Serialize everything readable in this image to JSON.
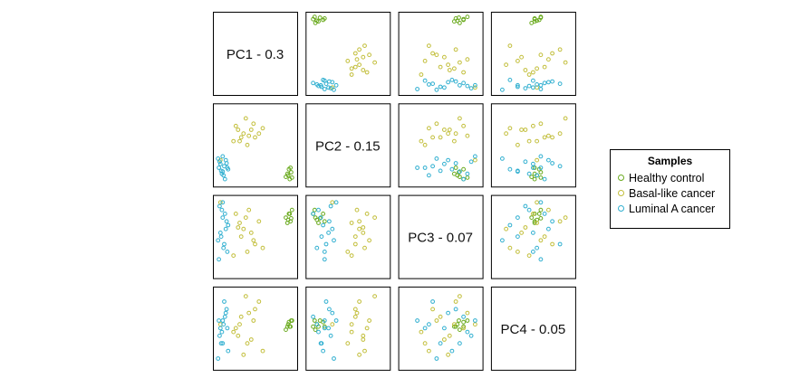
{
  "colors": {
    "healthy": "#6AAA1E",
    "basal": "#C2BE3A",
    "luminal": "#30AFD0"
  },
  "legend": {
    "title": "Samples",
    "items": [
      {
        "label": "Healthy control",
        "color_key": "healthy"
      },
      {
        "label": "Basal-like cancer",
        "color_key": "basal"
      },
      {
        "label": "Luminal A cancer",
        "color_key": "luminal"
      }
    ]
  },
  "chart_data": {
    "type": "scatter",
    "subtype": "pairs-matrix",
    "variables": [
      "PC1",
      "PC2",
      "PC3",
      "PC4"
    ],
    "diagonal_labels": [
      "PC1 - 0.3",
      "PC2 - 0.15",
      "PC3 - 0.07",
      "PC4 - 0.05"
    ],
    "axis_ticks_shown": false,
    "groups": [
      {
        "name": "Healthy control",
        "color_key": "healthy",
        "points": [
          [
            0.93,
            0.1,
            0.72,
            0.55
          ],
          [
            0.95,
            0.05,
            0.8,
            0.52
          ],
          [
            0.97,
            0.14,
            0.74,
            0.6
          ],
          [
            0.9,
            0.08,
            0.75,
            0.48
          ],
          [
            0.94,
            0.18,
            0.8,
            0.58
          ],
          [
            0.92,
            0.12,
            0.68,
            0.52
          ],
          [
            0.98,
            0.07,
            0.85,
            0.6
          ],
          [
            0.96,
            0.2,
            0.7,
            0.52
          ]
        ]
      },
      {
        "name": "Basal-like cancer",
        "color_key": "basal",
        "points": [
          [
            0.35,
            0.65,
            0.6,
            0.15
          ],
          [
            0.45,
            0.7,
            0.55,
            0.35
          ],
          [
            0.3,
            0.55,
            0.68,
            0.55
          ],
          [
            0.5,
            0.6,
            0.4,
            0.75
          ],
          [
            0.25,
            0.75,
            0.8,
            0.5
          ],
          [
            0.4,
            0.5,
            0.3,
            0.3
          ],
          [
            0.55,
            0.65,
            0.7,
            0.85
          ],
          [
            0.32,
            0.6,
            0.5,
            0.65
          ],
          [
            0.28,
            0.7,
            0.62,
            0.4
          ],
          [
            0.48,
            0.78,
            0.45,
            0.6
          ],
          [
            0.38,
            0.85,
            0.75,
            0.92
          ],
          [
            0.05,
            0.3,
            0.95,
            0.55
          ],
          [
            0.6,
            0.72,
            0.35,
            0.2
          ],
          [
            0.42,
            0.62,
            0.85,
            0.7
          ],
          [
            0.22,
            0.55,
            0.25,
            0.45
          ]
        ]
      },
      {
        "name": "Luminal A cancer",
        "color_key": "luminal",
        "points": [
          [
            0.05,
            0.25,
            0.55,
            0.5
          ],
          [
            0.08,
            0.15,
            0.75,
            0.3
          ],
          [
            0.03,
            0.2,
            0.2,
            0.6
          ],
          [
            0.12,
            0.3,
            0.6,
            0.7
          ],
          [
            0.07,
            0.12,
            0.85,
            0.45
          ],
          [
            0.1,
            0.22,
            0.4,
            0.85
          ],
          [
            0.15,
            0.18,
            0.65,
            0.2
          ],
          [
            0.04,
            0.28,
            0.9,
            0.4
          ],
          [
            0.09,
            0.1,
            0.35,
            0.55
          ],
          [
            0.13,
            0.26,
            0.7,
            0.75
          ],
          [
            0.06,
            0.16,
            0.5,
            0.3
          ],
          [
            0.11,
            0.05,
            0.8,
            0.65
          ],
          [
            0.02,
            0.32,
            0.45,
            0.1
          ],
          [
            0.14,
            0.2,
            0.3,
            0.5
          ],
          [
            0.08,
            0.35,
            0.95,
            0.6
          ]
        ]
      }
    ]
  }
}
